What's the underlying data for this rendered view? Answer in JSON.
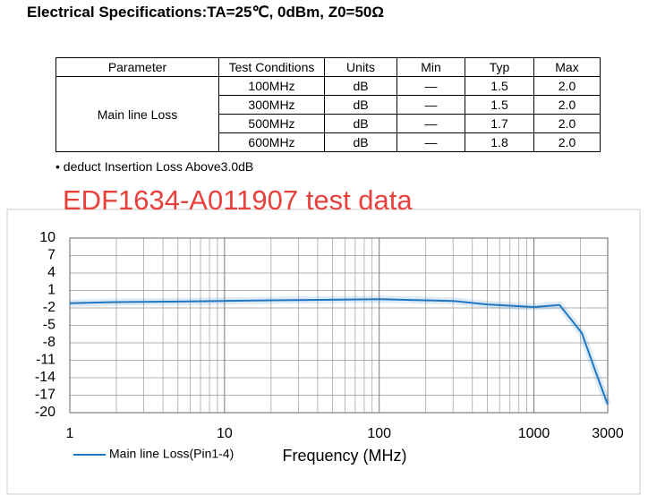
{
  "header": {
    "title": "Electrical Specifications:TA=25℃, 0dBm, Z0=50Ω"
  },
  "table": {
    "columns": [
      "Parameter",
      "Test Conditions",
      "Units",
      "Min",
      "Typ",
      "Max"
    ],
    "parameter": "Main line Loss",
    "rows": [
      [
        "100MHz",
        "dB",
        "—",
        "1.5",
        "2.0"
      ],
      [
        "300MHz",
        "dB",
        "—",
        "1.5",
        "2.0"
      ],
      [
        "500MHz",
        "dB",
        "—",
        "1.7",
        "2.0"
      ],
      [
        "600MHz",
        "dB",
        "—",
        "1.8",
        "2.0"
      ]
    ]
  },
  "note": "• deduct Insertion Loss Above3.0dB",
  "chart_data": {
    "type": "line",
    "title": "EDF1634-A011907 test data",
    "xlabel": "Frequency (MHz)",
    "x": [
      1,
      2,
      5,
      10,
      20,
      50,
      100,
      300,
      500,
      1000,
      1465,
      2040,
      2500,
      3000
    ],
    "series": [
      {
        "name": "Main line Loss(Pin1-4)",
        "color": "#1f77c4",
        "values": [
          -1.2,
          -1.0,
          -0.9,
          -0.8,
          -0.7,
          -0.6,
          -0.5,
          -0.8,
          -1.4,
          -1.85,
          -1.5,
          -6.3,
          -12.9,
          -18.6
        ]
      }
    ],
    "xlim": [
      1,
      3000
    ],
    "xticks": [
      1,
      10,
      100,
      1000,
      3000
    ],
    "xscale": "log",
    "ylim": [
      -20,
      10
    ],
    "yticks": [
      10,
      7,
      4,
      1,
      -2,
      -5,
      -8,
      -11,
      -14,
      -17,
      -20
    ],
    "grid": true,
    "legend": "bottom-left"
  }
}
